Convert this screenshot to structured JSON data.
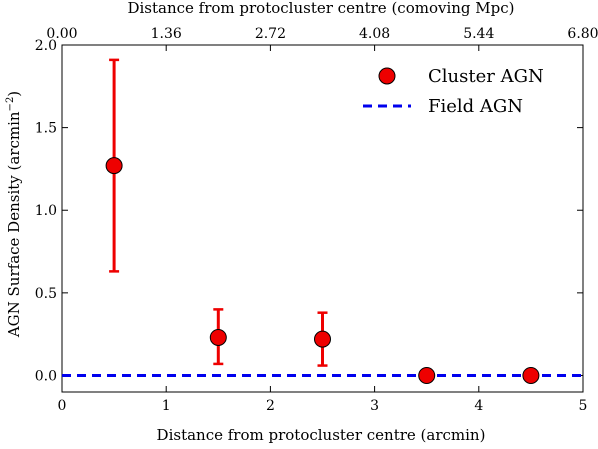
{
  "chart_data": {
    "type": "scatter",
    "xlabel": "Distance from protocluster centre (arcmin)",
    "ylabel": "AGN Surface Density (arcmin",
    "ylabel_exponent": "−2",
    "ylabel_suffix": ")",
    "top_xlabel": "Distance from protocluster centre (comoving Mpc)",
    "xlim": [
      0,
      5
    ],
    "ylim": [
      -0.1,
      2.0
    ],
    "x_ticks": [
      "0",
      "1",
      "2",
      "3",
      "4",
      "5"
    ],
    "y_ticks": [
      "0.0",
      "0.5",
      "1.0",
      "1.5",
      "2.0"
    ],
    "top_x_ticks": [
      "0.00",
      "1.36",
      "2.72",
      "4.08",
      "5.44",
      "6.80"
    ],
    "grid": false,
    "legend_position": "top-right",
    "series": [
      {
        "name": "Cluster AGN",
        "type": "scatter_errorbar",
        "color": "#ee0000",
        "x": [
          0.5,
          1.5,
          2.5,
          3.5,
          4.5
        ],
        "y": [
          1.27,
          0.23,
          0.22,
          0.0,
          0.0
        ],
        "yerr_low": [
          0.64,
          0.16,
          0.16,
          0.0,
          0.0
        ],
        "yerr_high": [
          0.64,
          0.17,
          0.16,
          0.0,
          0.0
        ]
      },
      {
        "name": "Field AGN",
        "type": "hline",
        "color": "#0000ee",
        "y": 0.0
      }
    ]
  }
}
